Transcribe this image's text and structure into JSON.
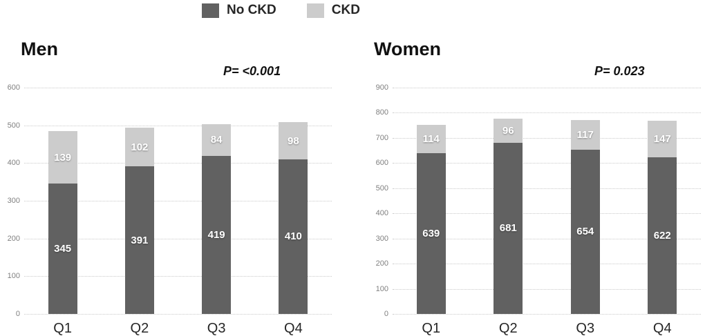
{
  "legend": {
    "items": [
      {
        "label": "No CKD",
        "color": "#616161"
      },
      {
        "label": "CKD",
        "color": "#cccccc"
      }
    ]
  },
  "chart_data": [
    {
      "type": "bar",
      "subtype": "stacked",
      "title": "Men",
      "p_value": "P= <0.001",
      "categories": [
        "Q1",
        "Q2",
        "Q3",
        "Q4"
      ],
      "series": [
        {
          "name": "No CKD",
          "color": "#616161",
          "values": [
            345,
            391,
            419,
            410
          ]
        },
        {
          "name": "CKD",
          "color": "#cccccc",
          "values": [
            139,
            102,
            84,
            98
          ]
        }
      ],
      "totals": [
        484,
        493,
        503,
        508
      ],
      "ylim": [
        0,
        600
      ],
      "ytick_step": 100,
      "grid": "horizontal-dotted",
      "legend_position": "top-center"
    },
    {
      "type": "bar",
      "subtype": "stacked",
      "title": "Women",
      "p_value": "P= 0.023",
      "categories": [
        "Q1",
        "Q2",
        "Q3",
        "Q4"
      ],
      "series": [
        {
          "name": "No CKD",
          "color": "#616161",
          "values": [
            639,
            681,
            654,
            622
          ]
        },
        {
          "name": "CKD",
          "color": "#cccccc",
          "values": [
            114,
            96,
            117,
            147
          ]
        }
      ],
      "totals": [
        753,
        777,
        771,
        769
      ],
      "ylim": [
        0,
        900
      ],
      "ytick_step": 100,
      "grid": "horizontal-dotted",
      "legend_position": "top-center"
    }
  ]
}
